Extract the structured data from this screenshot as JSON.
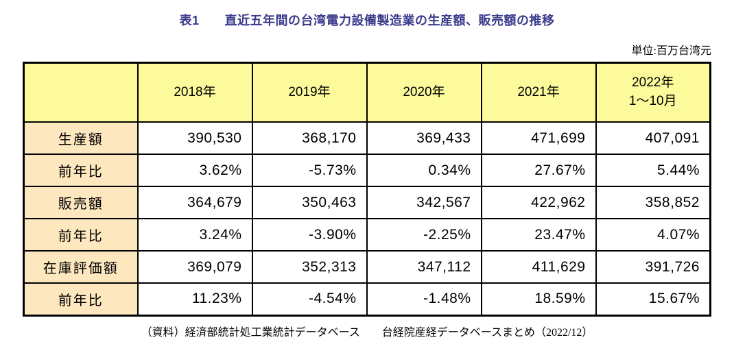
{
  "title": "表1　　直近五年間の台湾電力設備製造業の生産額、販売額の推移",
  "unit_note": "単位:百万台湾元",
  "table": {
    "corner_label": "",
    "column_headers": [
      "2018年",
      "2019年",
      "2020年",
      "2021年",
      "2022年\n1〜10月"
    ],
    "rows": [
      {
        "label": "生産額",
        "values": [
          "390,530",
          "368,170",
          "369,433",
          "471,699",
          "407,091"
        ]
      },
      {
        "label": "前年比",
        "values": [
          "3.62%",
          "-5.73%",
          "0.34%",
          "27.67%",
          "5.44%"
        ]
      },
      {
        "label": "販売額",
        "values": [
          "364,679",
          "350,463",
          "342,567",
          "422,962",
          "358,852"
        ]
      },
      {
        "label": "前年比",
        "values": [
          "3.24%",
          "-3.90%",
          "-2.25%",
          "23.47%",
          "4.07%"
        ]
      },
      {
        "label": "在庫評価額",
        "values": [
          "369,079",
          "352,313",
          "347,112",
          "411,629",
          "391,726"
        ]
      },
      {
        "label": "前年比",
        "values": [
          "11.23%",
          "-4.54%",
          "-1.48%",
          "18.59%",
          "15.67%"
        ]
      }
    ]
  },
  "footer": "（資料）経済部統計処工業統計データベース　　台経院産経データベースまとめ（2022/12）",
  "colors": {
    "header_bg": "#FCFA9B",
    "label_bg": "#FDE7BE",
    "title_color": "#3A3A8C",
    "border": "#000000"
  },
  "chart_data": {
    "type": "table",
    "title": "表1　直近五年間の台湾電力設備製造業の生産額、販売額の推移",
    "unit": "百万台湾元",
    "columns": [
      "2018年",
      "2019年",
      "2020年",
      "2021年",
      "2022年1〜10月"
    ],
    "series": [
      {
        "name": "生産額",
        "values": [
          390530,
          368170,
          369433,
          471699,
          407091
        ]
      },
      {
        "name": "前年比",
        "values": [
          3.62,
          -5.73,
          0.34,
          27.67,
          5.44
        ]
      },
      {
        "name": "販売額",
        "values": [
          364679,
          350463,
          342567,
          422962,
          358852
        ]
      },
      {
        "name": "前年比",
        "values": [
          3.24,
          -3.9,
          -2.25,
          23.47,
          4.07
        ]
      },
      {
        "name": "在庫評価額",
        "values": [
          369079,
          352313,
          347112,
          411629,
          391726
        ]
      },
      {
        "name": "前年比",
        "values": [
          11.23,
          -4.54,
          -1.48,
          18.59,
          15.67
        ]
      }
    ],
    "source": "（資料）経済部統計処工業統計データベース　台経院産経データベースまとめ（2022/12）"
  }
}
